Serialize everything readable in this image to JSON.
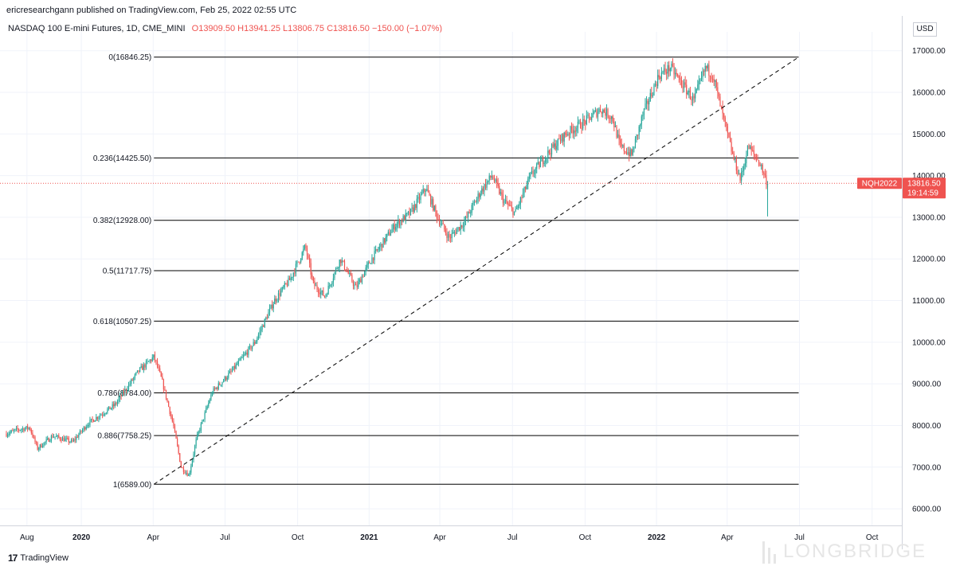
{
  "header": {
    "published_line": "ericresearchgann published on TradingView.com, Feb 25, 2022 02:55 UTC",
    "symbol_desc": "NASDAQ 100 E-mini Futures, 1D, CME_MINI",
    "ohlc": {
      "o": "O13909.50",
      "h": "H13941.25",
      "l": "L13806.75",
      "c": "C13816.50",
      "chg": "−150.00 (−1.07%)"
    },
    "currency": "USD"
  },
  "footer": {
    "brand": "TradingView",
    "watermark": "LONGBRIDGE"
  },
  "colors": {
    "up": "#26a69a",
    "down": "#ef5350",
    "line": "#000000",
    "badge": "#ef5350",
    "grid": "#f0f3fa"
  },
  "price_badge": {
    "symbol": "NQH2022",
    "price": "13816.50",
    "countdown": "19:14:59",
    "value": 13816.5
  },
  "chart_data": {
    "type": "candlestick",
    "ylim": [
      5600,
      17300
    ],
    "y_ticks": [
      6000,
      7000,
      8000,
      9000,
      10000,
      11000,
      12000,
      13000,
      14000,
      15000,
      16000,
      17000
    ],
    "y_tick_labels": [
      "6000.00",
      "7000.00",
      "8000.00",
      "9000.00",
      "10000.00",
      "11000.00",
      "12000.00",
      "13000.00",
      "14000.00",
      "15000.00",
      "16000.00",
      "17000.00"
    ],
    "x_ticks": [
      {
        "label": "Aug",
        "major": false,
        "t": 0.053
      },
      {
        "label": "2020",
        "major": true,
        "t": 0.193
      },
      {
        "label": "Apr",
        "major": false,
        "t": 0.378
      },
      {
        "label": "Jul",
        "major": false,
        "t": 0.563
      },
      {
        "label": "Oct",
        "major": false,
        "t": 0.75
      },
      {
        "label": "2021",
        "major": true,
        "t": 0.934
      },
      {
        "label": "Apr",
        "major": false,
        "t": 1.116
      },
      {
        "label": "Jul",
        "major": false,
        "t": 1.303
      },
      {
        "label": "Oct",
        "major": false,
        "t": 1.49
      },
      {
        "label": "2022",
        "major": true,
        "t": 1.674
      },
      {
        "label": "Apr",
        "major": false,
        "t": 1.856
      },
      {
        "label": "Jul",
        "major": false,
        "t": 2.042
      },
      {
        "label": "Oct",
        "major": false,
        "t": 2.229
      }
    ],
    "fib_levels": [
      {
        "ratio": 0,
        "value": 16846.25,
        "label": "0(16846.25)"
      },
      {
        "ratio": 0.236,
        "value": 14425.5,
        "label": "0.236(14425.50)"
      },
      {
        "ratio": 0.382,
        "value": 12928.0,
        "label": "0.382(12928.00)"
      },
      {
        "ratio": 0.5,
        "value": 11717.75,
        "label": "0.5(11717.75)"
      },
      {
        "ratio": 0.618,
        "value": 10507.25,
        "label": "0.618(10507.25)"
      },
      {
        "ratio": 0.786,
        "value": 8784.0,
        "label": "0.786(8784.00)"
      },
      {
        "ratio": 0.886,
        "value": 7758.25,
        "label": "0.886(7758.25)"
      },
      {
        "ratio": 1,
        "value": 6589.0,
        "label": "1(6589.00)"
      }
    ],
    "fib_time_range": [
      0.38,
      2.04
    ],
    "trendline": {
      "t0": 0.38,
      "v0": 6589.0,
      "t1": 2.04,
      "v1": 16846.25
    },
    "price_path": [
      {
        "t": 0.0,
        "v": 7800
      },
      {
        "t": 0.03,
        "v": 7900
      },
      {
        "t": 0.06,
        "v": 7950
      },
      {
        "t": 0.08,
        "v": 7450
      },
      {
        "t": 0.12,
        "v": 7750
      },
      {
        "t": 0.17,
        "v": 7600
      },
      {
        "t": 0.21,
        "v": 8050
      },
      {
        "t": 0.28,
        "v": 8500
      },
      {
        "t": 0.34,
        "v": 9300
      },
      {
        "t": 0.38,
        "v": 9650
      },
      {
        "t": 0.4,
        "v": 9100
      },
      {
        "t": 0.43,
        "v": 8000
      },
      {
        "t": 0.45,
        "v": 7000
      },
      {
        "t": 0.47,
        "v": 6800
      },
      {
        "t": 0.49,
        "v": 7700
      },
      {
        "t": 0.53,
        "v": 8800
      },
      {
        "t": 0.58,
        "v": 9300
      },
      {
        "t": 0.64,
        "v": 10000
      },
      {
        "t": 0.69,
        "v": 11000
      },
      {
        "t": 0.73,
        "v": 11500
      },
      {
        "t": 0.77,
        "v": 12300
      },
      {
        "t": 0.79,
        "v": 11400
      },
      {
        "t": 0.82,
        "v": 11100
      },
      {
        "t": 0.86,
        "v": 12000
      },
      {
        "t": 0.9,
        "v": 11300
      },
      {
        "t": 0.94,
        "v": 12000
      },
      {
        "t": 1.0,
        "v": 12800
      },
      {
        "t": 1.04,
        "v": 13100
      },
      {
        "t": 1.08,
        "v": 13700
      },
      {
        "t": 1.11,
        "v": 13000
      },
      {
        "t": 1.14,
        "v": 12500
      },
      {
        "t": 1.18,
        "v": 12900
      },
      {
        "t": 1.22,
        "v": 13600
      },
      {
        "t": 1.25,
        "v": 14000
      },
      {
        "t": 1.28,
        "v": 13400
      },
      {
        "t": 1.31,
        "v": 13100
      },
      {
        "t": 1.35,
        "v": 14000
      },
      {
        "t": 1.4,
        "v": 14600
      },
      {
        "t": 1.44,
        "v": 15000
      },
      {
        "t": 1.49,
        "v": 15300
      },
      {
        "t": 1.53,
        "v": 15600
      },
      {
        "t": 1.56,
        "v": 15400
      },
      {
        "t": 1.58,
        "v": 14700
      },
      {
        "t": 1.61,
        "v": 14500
      },
      {
        "t": 1.64,
        "v": 15500
      },
      {
        "t": 1.68,
        "v": 16400
      },
      {
        "t": 1.71,
        "v": 16600
      },
      {
        "t": 1.74,
        "v": 16200
      },
      {
        "t": 1.77,
        "v": 15800
      },
      {
        "t": 1.8,
        "v": 16600
      },
      {
        "t": 1.82,
        "v": 16400
      },
      {
        "t": 1.84,
        "v": 15600
      },
      {
        "t": 1.87,
        "v": 14500
      },
      {
        "t": 1.89,
        "v": 13900
      },
      {
        "t": 1.91,
        "v": 14700
      },
      {
        "t": 1.94,
        "v": 14300
      },
      {
        "t": 1.96,
        "v": 13800
      }
    ]
  }
}
